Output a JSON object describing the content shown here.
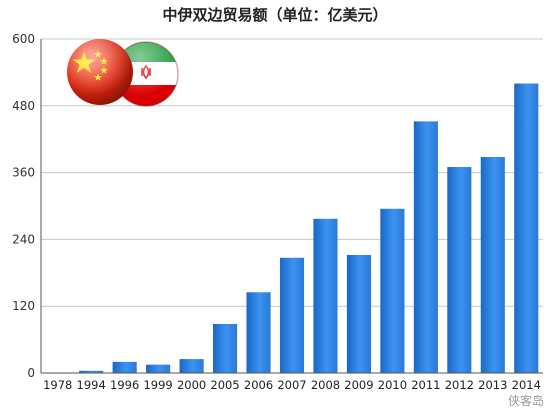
{
  "chart_data": {
    "type": "bar",
    "title": "中伊双边贸易额（单位：亿美元）",
    "categories": [
      "1978",
      "1994",
      "1996",
      "1999",
      "2000",
      "2005",
      "2006",
      "2007",
      "2008",
      "2009",
      "2010",
      "2011",
      "2012",
      "2013",
      "2014"
    ],
    "values": [
      0.1,
      4,
      20,
      15,
      25,
      88,
      145,
      207,
      277,
      212,
      295,
      452,
      370,
      388,
      520
    ],
    "ylim": [
      0,
      600
    ],
    "yticks": [
      0,
      120,
      240,
      360,
      480,
      600
    ],
    "grid": true,
    "legend": "none",
    "bar_color": "#2f82de"
  },
  "flags": [
    {
      "name": "china",
      "colors": [
        "#de2910",
        "#ffde00"
      ]
    },
    {
      "name": "iran",
      "colors": [
        "#239f40",
        "#ffffff",
        "#da0000"
      ]
    }
  ],
  "watermark": "侠客岛"
}
